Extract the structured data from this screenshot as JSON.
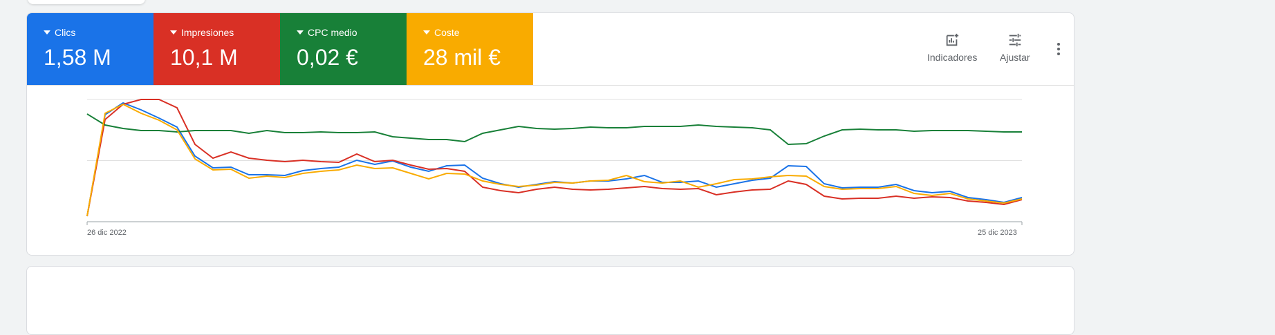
{
  "metrics": [
    {
      "label": "Clics",
      "value": "1,58 M",
      "color": "#1a73e8"
    },
    {
      "label": "Impresiones",
      "value": "10,1 M",
      "color": "#d93025"
    },
    {
      "label": "CPC medio",
      "value": "0,02 €",
      "color": "#188038"
    },
    {
      "label": "Coste",
      "value": "28 mil €",
      "color": "#f9ab00"
    }
  ],
  "toolbar": {
    "indicators_label": "Indicadores",
    "adjust_label": "Ajustar",
    "more_icon": "more-vert-icon"
  },
  "chart_data": {
    "type": "line",
    "x_start_label": "26 dic 2022",
    "x_end_label": "25 dic 2023",
    "x_interval": "weekly",
    "ylim": [
      0,
      177
    ],
    "grid": true,
    "y_scale": "relative (unlabeled, independent per series)",
    "series": [
      {
        "name": "Clics",
        "color": "#1a73e8",
        "values": [
          8,
          155,
          172,
          162,
          150,
          137,
          95,
          78,
          79,
          68,
          68,
          67,
          74,
          77,
          79,
          89,
          83,
          88,
          79,
          73,
          81,
          82,
          63,
          55,
          50,
          54,
          58,
          56,
          59,
          59,
          62,
          67,
          57,
          57,
          59,
          50,
          55,
          60,
          63,
          81,
          80,
          55,
          49,
          50,
          50,
          54,
          45,
          42,
          44,
          35,
          32,
          28,
          35
        ]
      },
      {
        "name": "Impresiones",
        "color": "#d93025",
        "values": [
          8,
          148,
          170,
          177,
          177,
          165,
          112,
          92,
          101,
          92,
          89,
          87,
          89,
          87,
          86,
          98,
          87,
          89,
          82,
          76,
          77,
          73,
          50,
          45,
          42,
          47,
          50,
          47,
          46,
          47,
          49,
          51,
          48,
          47,
          48,
          39,
          43,
          46,
          47,
          59,
          54,
          37,
          33,
          34,
          34,
          37,
          34,
          36,
          35,
          30,
          28,
          25,
          32
        ]
      },
      {
        "name": "CPC medio",
        "color": "#188038",
        "values": [
          156,
          140,
          135,
          132,
          132,
          130,
          132,
          132,
          132,
          128,
          132,
          129,
          129,
          130,
          129,
          129,
          130,
          123,
          121,
          119,
          119,
          116,
          128,
          133,
          138,
          135,
          134,
          135,
          137,
          136,
          136,
          138,
          138,
          138,
          140,
          138,
          137,
          136,
          133,
          112,
          113,
          124,
          133,
          134,
          133,
          133,
          131,
          132,
          132,
          132,
          131,
          130,
          130
        ]
      },
      {
        "name": "Coste",
        "color": "#f9ab00",
        "values": [
          8,
          157,
          170,
          157,
          147,
          133,
          91,
          75,
          76,
          63,
          66,
          64,
          70,
          73,
          75,
          82,
          77,
          78,
          70,
          62,
          70,
          69,
          59,
          54,
          51,
          53,
          57,
          56,
          59,
          60,
          67,
          58,
          56,
          59,
          50,
          55,
          61,
          62,
          65,
          67,
          66,
          51,
          47,
          48,
          48,
          51,
          41,
          38,
          41,
          33,
          30,
          27,
          33
        ]
      }
    ]
  }
}
